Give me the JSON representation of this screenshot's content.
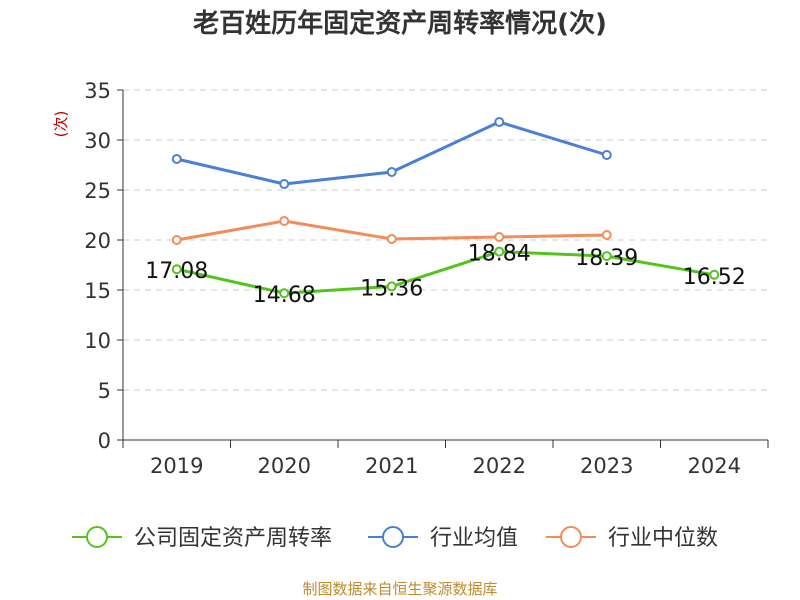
{
  "chart_data": {
    "type": "line",
    "title": "老百姓历年固定资产周转率情况(次)",
    "ylabel": "(次)",
    "xlabel": "",
    "categories": [
      "2019",
      "2020",
      "2021",
      "2022",
      "2023",
      "2024"
    ],
    "ylim": [
      0,
      35
    ],
    "yticks": [
      0,
      5,
      10,
      15,
      20,
      25,
      30,
      35
    ],
    "grid": true,
    "legend_position": "bottom",
    "series": [
      {
        "name": "公司固定资产周转率",
        "color": "#52c41a",
        "values": [
          17.08,
          14.68,
          15.36,
          18.84,
          18.39,
          16.52
        ],
        "data_labels": [
          "17.08",
          "14.68",
          "15.36",
          "18.84",
          "18.39",
          "16.52"
        ]
      },
      {
        "name": "行业均值",
        "color": "#4a7fd8",
        "values": [
          28.1,
          25.6,
          26.8,
          31.8,
          28.5,
          null
        ]
      },
      {
        "name": "行业中位数",
        "color": "#f28c5a",
        "values": [
          20.0,
          21.9,
          20.1,
          20.3,
          20.5,
          null
        ]
      }
    ]
  },
  "source": "制图数据来自恒生聚源数据库"
}
